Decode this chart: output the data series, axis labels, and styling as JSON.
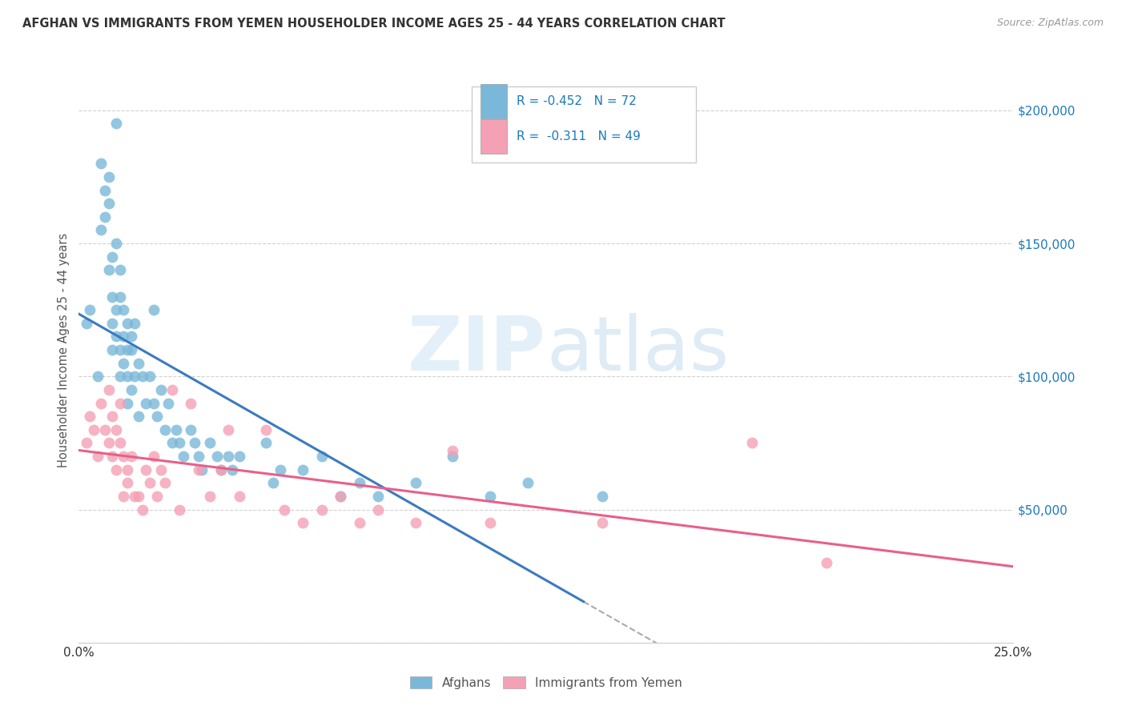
{
  "title": "AFGHAN VS IMMIGRANTS FROM YEMEN HOUSEHOLDER INCOME AGES 25 - 44 YEARS CORRELATION CHART",
  "source": "Source: ZipAtlas.com",
  "ylabel": "Householder Income Ages 25 - 44 years",
  "xlim": [
    0.0,
    0.25
  ],
  "ylim": [
    0,
    220000
  ],
  "yticks": [
    0,
    50000,
    100000,
    150000,
    200000
  ],
  "ytick_labels": [
    "",
    "$50,000",
    "$100,000",
    "$150,000",
    "$200,000"
  ],
  "xticks": [
    0.0,
    0.05,
    0.1,
    0.15,
    0.2,
    0.25
  ],
  "xtick_labels": [
    "0.0%",
    "",
    "",
    "",
    "",
    "25.0%"
  ],
  "legend_label1": "Afghans",
  "legend_label2": "Immigrants from Yemen",
  "R1": -0.452,
  "N1": 72,
  "R2": -0.311,
  "N2": 49,
  "color_blue": "#7ab8d9",
  "color_pink": "#f4a0b5",
  "line_color_blue": "#3a7bbf",
  "line_color_pink": "#e8608a",
  "watermark_zip": "ZIP",
  "watermark_atlas": "atlas",
  "background_color": "#ffffff",
  "afghans_x": [
    0.002,
    0.003,
    0.005,
    0.006,
    0.006,
    0.007,
    0.007,
    0.008,
    0.008,
    0.008,
    0.009,
    0.009,
    0.009,
    0.009,
    0.01,
    0.01,
    0.01,
    0.01,
    0.011,
    0.011,
    0.011,
    0.011,
    0.012,
    0.012,
    0.012,
    0.013,
    0.013,
    0.013,
    0.013,
    0.014,
    0.014,
    0.014,
    0.015,
    0.015,
    0.016,
    0.016,
    0.017,
    0.018,
    0.019,
    0.02,
    0.02,
    0.021,
    0.022,
    0.023,
    0.024,
    0.025,
    0.026,
    0.027,
    0.028,
    0.03,
    0.031,
    0.032,
    0.033,
    0.035,
    0.037,
    0.038,
    0.04,
    0.041,
    0.043,
    0.05,
    0.052,
    0.054,
    0.06,
    0.065,
    0.07,
    0.075,
    0.08,
    0.09,
    0.1,
    0.11,
    0.12,
    0.14
  ],
  "afghans_y": [
    120000,
    125000,
    100000,
    180000,
    155000,
    170000,
    160000,
    175000,
    165000,
    140000,
    145000,
    130000,
    120000,
    110000,
    195000,
    150000,
    125000,
    115000,
    140000,
    130000,
    110000,
    100000,
    125000,
    115000,
    105000,
    120000,
    110000,
    100000,
    90000,
    115000,
    110000,
    95000,
    120000,
    100000,
    105000,
    85000,
    100000,
    90000,
    100000,
    125000,
    90000,
    85000,
    95000,
    80000,
    90000,
    75000,
    80000,
    75000,
    70000,
    80000,
    75000,
    70000,
    65000,
    75000,
    70000,
    65000,
    70000,
    65000,
    70000,
    75000,
    60000,
    65000,
    65000,
    70000,
    55000,
    60000,
    55000,
    60000,
    70000,
    55000,
    60000,
    55000
  ],
  "yemen_x": [
    0.002,
    0.003,
    0.004,
    0.005,
    0.006,
    0.007,
    0.008,
    0.008,
    0.009,
    0.009,
    0.01,
    0.01,
    0.011,
    0.011,
    0.012,
    0.012,
    0.013,
    0.013,
    0.014,
    0.015,
    0.016,
    0.017,
    0.018,
    0.019,
    0.02,
    0.021,
    0.022,
    0.023,
    0.025,
    0.027,
    0.03,
    0.032,
    0.035,
    0.038,
    0.04,
    0.043,
    0.05,
    0.055,
    0.06,
    0.065,
    0.07,
    0.075,
    0.08,
    0.09,
    0.1,
    0.11,
    0.14,
    0.18,
    0.2
  ],
  "yemen_y": [
    75000,
    85000,
    80000,
    70000,
    90000,
    80000,
    75000,
    95000,
    85000,
    70000,
    80000,
    65000,
    90000,
    75000,
    70000,
    55000,
    65000,
    60000,
    70000,
    55000,
    55000,
    50000,
    65000,
    60000,
    70000,
    55000,
    65000,
    60000,
    95000,
    50000,
    90000,
    65000,
    55000,
    65000,
    80000,
    55000,
    80000,
    50000,
    45000,
    50000,
    55000,
    45000,
    50000,
    45000,
    72000,
    45000,
    45000,
    75000,
    30000
  ]
}
